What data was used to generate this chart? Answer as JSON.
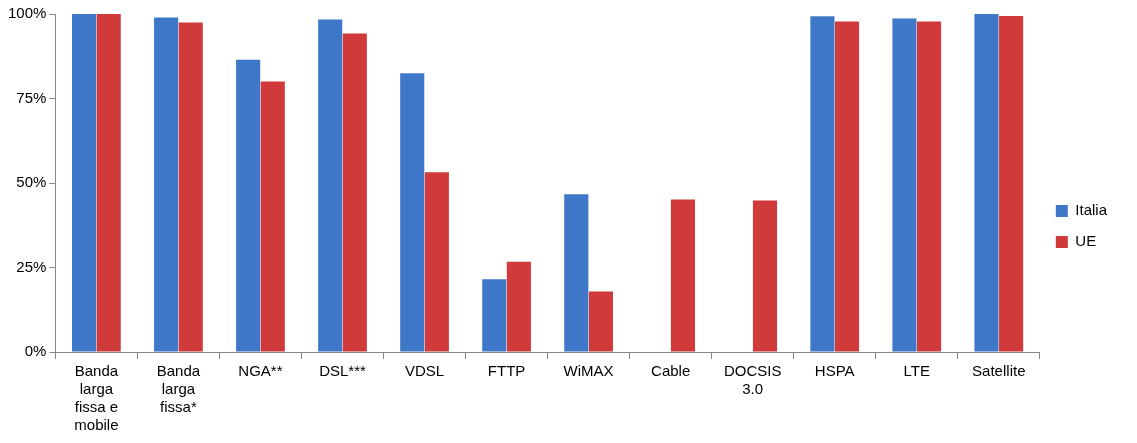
{
  "chart_data": {
    "type": "bar",
    "categories": [
      "Banda larga fissa e mobile",
      "Banda larga fissa*",
      "NGA**",
      "DSL***",
      "VDSL",
      "FTTP",
      "WiMAX",
      "Cable",
      "DOCSIS 3.0",
      "HSPA",
      "LTE",
      "Satellite"
    ],
    "series": [
      {
        "name": "Italia",
        "color": "#3f78c9",
        "values": [
          100,
          99,
          86.5,
          98.4,
          82.5,
          21.5,
          46.7,
          null,
          null,
          99.3,
          98.7,
          100
        ]
      },
      {
        "name": "UE",
        "color": "#d03a3a",
        "values": [
          100,
          97.5,
          80,
          94.2,
          53.2,
          26.7,
          17.9,
          45.1,
          44.8,
          97.8,
          97.8,
          99.4
        ]
      }
    ],
    "ylim": [
      0,
      100
    ],
    "yticks": [
      {
        "value": 0,
        "label": "0%"
      },
      {
        "value": 25,
        "label": "25%"
      },
      {
        "value": 50,
        "label": "50%"
      },
      {
        "value": 75,
        "label": "75%"
      },
      {
        "value": 100,
        "label": "100%"
      }
    ],
    "grid": false,
    "legend": "right"
  }
}
